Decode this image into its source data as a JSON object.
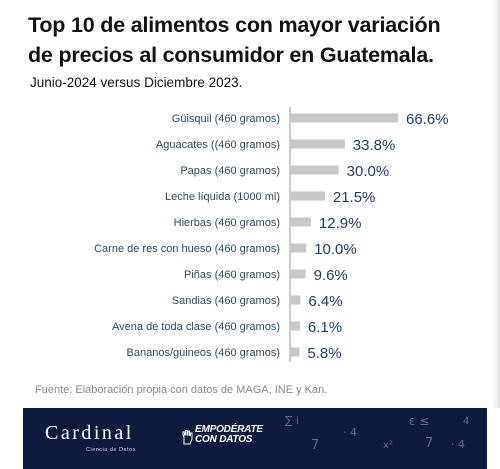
{
  "header": {
    "title_line1": "Top 10 de alimentos con mayor variación",
    "title_line2": "de precios al consumidor en Guatemala.",
    "subtitle": "Junio-2024 versus Diciembre 2023."
  },
  "chart_data": {
    "type": "bar",
    "orientation": "horizontal",
    "title": "Top 10 de alimentos con mayor variación de precios al consumidor en Guatemala.",
    "subtitle": "Junio-2024 versus Diciembre 2023.",
    "categories": [
      "Güisquil (460 gramos)",
      "Aguacates ((460 gramos)",
      "Papas (460 gramos)",
      "Leche líquida (1000 ml)",
      "Hierbas (460 gramos)",
      "Carne de res con hueso (460 gramos)",
      "Piñas (460 gramos)",
      "Sandias (460 gramos)",
      "Avena de toda clase (460 gramos)",
      "Bananos/guineos (460 gramos)"
    ],
    "values": [
      66.6,
      33.8,
      30.0,
      21.5,
      12.9,
      10.0,
      9.6,
      6.4,
      6.1,
      5.8
    ],
    "value_labels": [
      "66.6%",
      "33.8%",
      "30.0%",
      "21.5%",
      "12.9%",
      "10.0%",
      "9.6%",
      "6.4%",
      "6.1%",
      "5.8%"
    ],
    "unit": "%",
    "xlim": [
      0,
      66.6
    ],
    "grid": false,
    "legend": "none",
    "bar_color": "#c8c8c8",
    "axis_color": "#9a9a9a",
    "label_color": "#2b4a6b",
    "value_color": "#1f3d72"
  },
  "source": "Fuente: Elaboración propia con datos de MAGA, INE y Kan.",
  "footer": {
    "brand": "Cardinal",
    "brand_sub": "Ciencia de Datos",
    "emp_line1": "EMPODÉRATE",
    "emp_line2": "CON DATOS",
    "background": "#0d1b3f"
  }
}
